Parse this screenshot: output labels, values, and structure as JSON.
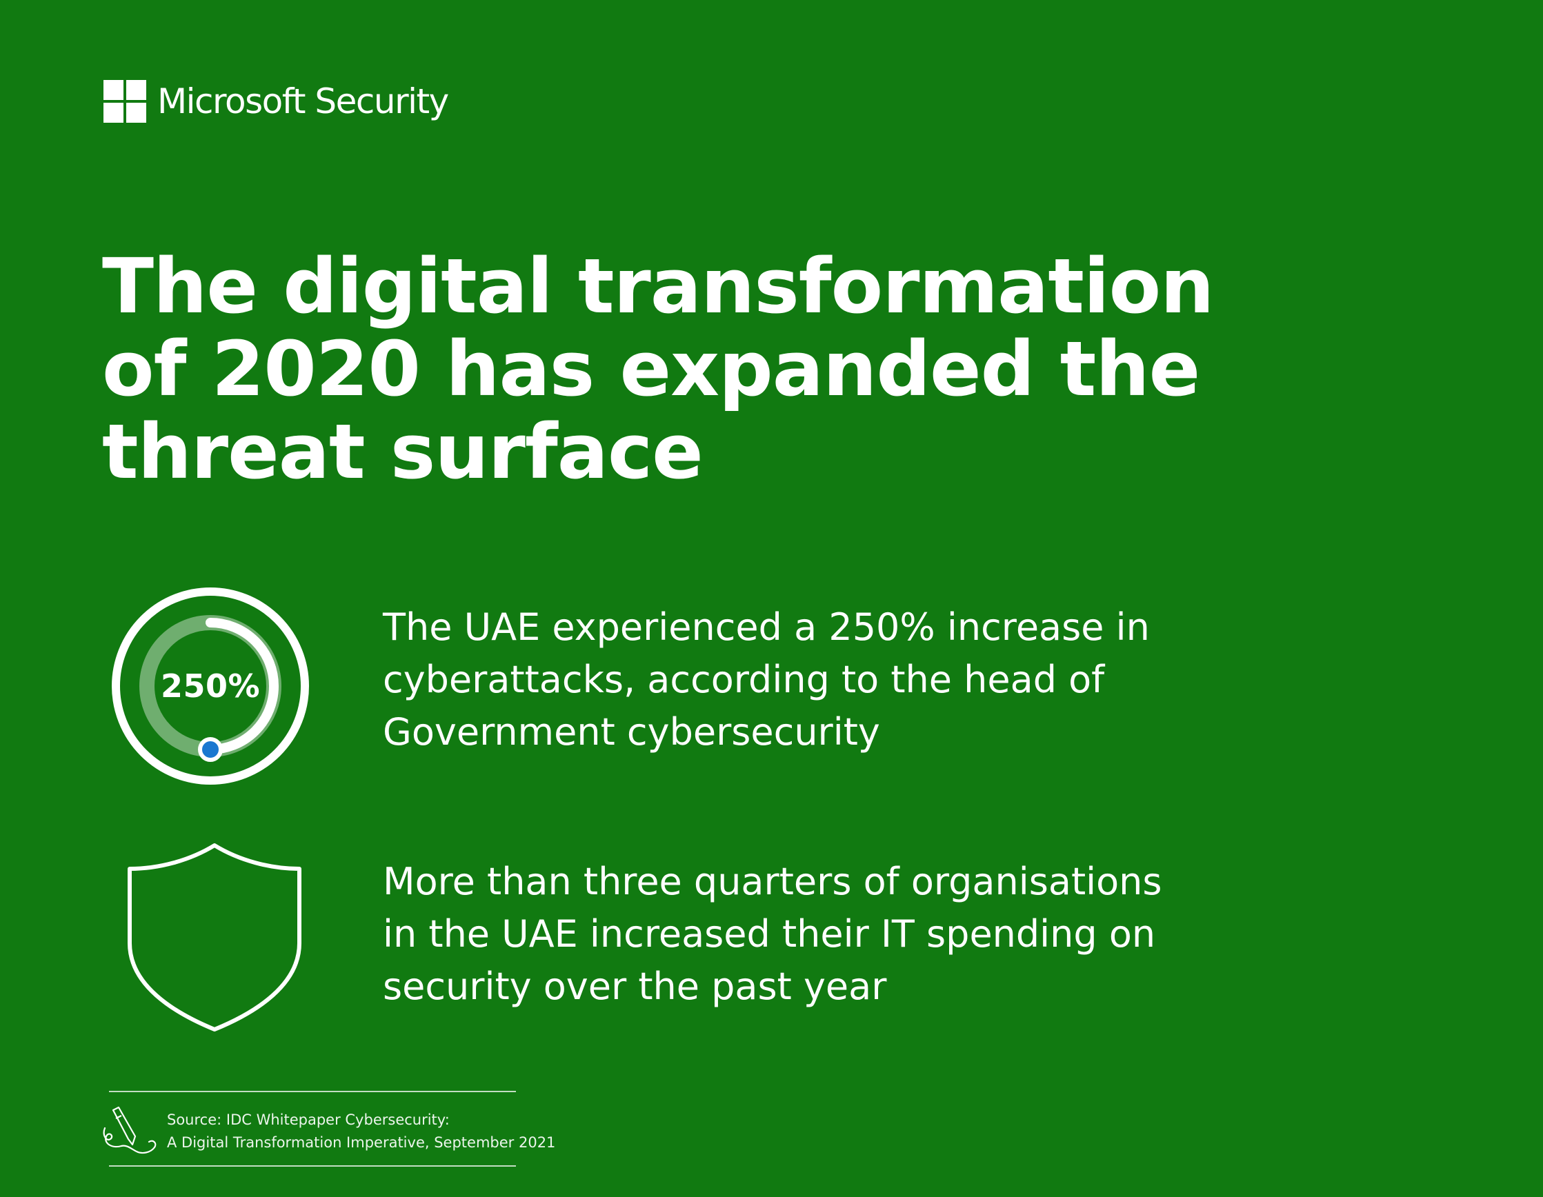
{
  "brand": {
    "name": "Microsoft Security",
    "logo_icon": "microsoft-four-squares-logo"
  },
  "headline": {
    "lines": [
      "The digital transformation",
      "of 2020 has expanded the",
      "threat surface"
    ]
  },
  "stats": [
    {
      "icon": "progress-ring-icon",
      "value_label": "250%",
      "lines": [
        "The UAE experienced a 250% increase in",
        "cyberattacks, according to the head of",
        "Government cybersecurity"
      ]
    },
    {
      "icon": "shield-icon",
      "lines": [
        "More than three quarters of organisations",
        "in the UAE increased their IT spending on",
        "security over the past year"
      ]
    }
  ],
  "source": {
    "icon": "pen-writing-icon",
    "lines": [
      "Source: IDC Whitepaper Cybersecurity:",
      "A Digital Transformation Imperative, September 2021"
    ]
  },
  "colors": {
    "background": "#117a11",
    "foreground": "#ffffff",
    "ring_track": "#6fae6f",
    "ring_dot": "#1a78d0"
  }
}
